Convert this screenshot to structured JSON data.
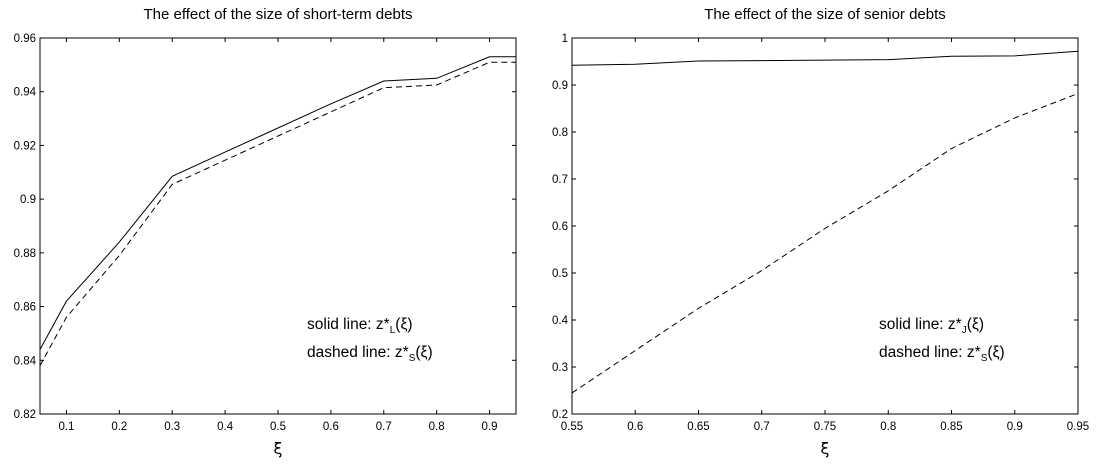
{
  "chart_data": [
    {
      "type": "line",
      "title": "The effect of the size of short-term debts",
      "xlabel": "ξ",
      "ylabel": "",
      "xlim": [
        0.05,
        0.95
      ],
      "ylim": [
        0.82,
        0.96
      ],
      "xticks": [
        "0.1",
        "0.2",
        "0.3",
        "0.4",
        "0.5",
        "0.6",
        "0.7",
        "0.8",
        "0.9"
      ],
      "yticks": [
        "0.82",
        "0.84",
        "0.86",
        "0.88",
        "0.9",
        "0.92",
        "0.94",
        "0.96"
      ],
      "x": [
        0.05,
        0.1,
        0.2,
        0.3,
        0.4,
        0.5,
        0.6,
        0.7,
        0.8,
        0.9,
        0.95
      ],
      "series": [
        {
          "style": "solid",
          "values": [
            0.844,
            0.862,
            0.884,
            0.9085,
            0.9175,
            0.9265,
            0.9355,
            0.944,
            0.945,
            0.953,
            0.953
          ]
        },
        {
          "style": "dashed",
          "values": [
            0.838,
            0.856,
            0.879,
            0.9055,
            0.9145,
            0.9235,
            0.9325,
            0.9415,
            0.9425,
            0.951,
            0.951
          ]
        }
      ],
      "legend": {
        "solid_prefix": "solid line: z*",
        "solid_sub": "L",
        "solid_suffix": "(ξ)",
        "dashed_prefix": "dashed line: z*",
        "dashed_sub": "S",
        "dashed_suffix": "(ξ)"
      },
      "legend_position": "bottom-right",
      "grid": false
    },
    {
      "type": "line",
      "title": "The effect of the size of senior debts",
      "xlabel": "ξ",
      "ylabel": "",
      "xlim": [
        0.55,
        0.95
      ],
      "ylim": [
        0.2,
        1.0
      ],
      "xticks": [
        "0.55",
        "0.6",
        "0.65",
        "0.7",
        "0.75",
        "0.8",
        "0.85",
        "0.9",
        "0.95"
      ],
      "yticks": [
        "0.2",
        "0.3",
        "0.4",
        "0.5",
        "0.6",
        "0.7",
        "0.8",
        "0.9",
        "1"
      ],
      "x": [
        0.55,
        0.6,
        0.65,
        0.7,
        0.75,
        0.8,
        0.85,
        0.9,
        0.95
      ],
      "series": [
        {
          "style": "solid",
          "values": [
            0.942,
            0.944,
            0.951,
            0.952,
            0.953,
            0.954,
            0.961,
            0.962,
            0.972
          ]
        },
        {
          "style": "dashed",
          "values": [
            0.245,
            0.335,
            0.425,
            0.505,
            0.595,
            0.675,
            0.765,
            0.83,
            0.882
          ]
        }
      ],
      "legend": {
        "solid_prefix": "solid line: z*",
        "solid_sub": "J",
        "solid_suffix": "(ξ)",
        "dashed_prefix": "dashed line: z*",
        "dashed_sub": "S",
        "dashed_suffix": "(ξ)"
      },
      "legend_position": "bottom-right",
      "grid": false
    }
  ]
}
